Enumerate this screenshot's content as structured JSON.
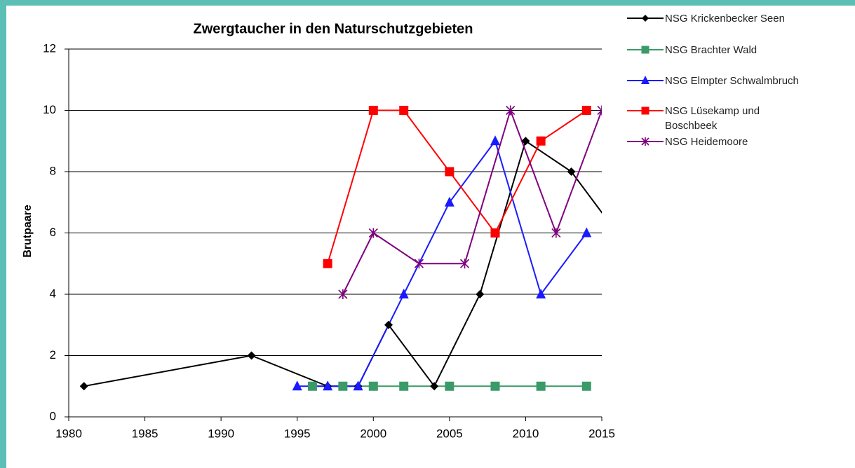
{
  "chart_data": {
    "type": "line",
    "title": "Zwergtaucher in den Naturschutzgebieten",
    "y_label": "Brutpaare",
    "xlim": [
      1980,
      2015
    ],
    "xticks": [
      1980,
      1985,
      1990,
      1995,
      2000,
      2005,
      2010,
      2015
    ],
    "ylim": [
      0,
      12
    ],
    "yticks": [
      0,
      2,
      4,
      6,
      8,
      10,
      12
    ],
    "grid": true,
    "legend": "right",
    "series": [
      {
        "name": "NSG Krickenbecker Seen",
        "color": "#000000",
        "marker": "diamond",
        "x": [
          1981,
          1992,
          1997,
          1999,
          2001,
          2004,
          2007,
          2010,
          2013,
          2016
        ],
        "values": [
          1,
          2,
          1,
          1,
          3,
          1,
          4,
          9,
          8,
          6
        ]
      },
      {
        "name": "NSG Brachter Wald",
        "color": "#3a9a68",
        "marker": "square",
        "x": [
          1996,
          1998,
          2000,
          2002,
          2005,
          2008,
          2011,
          2014
        ],
        "values": [
          1,
          1,
          1,
          1,
          1,
          1,
          1,
          1
        ]
      },
      {
        "name": "NSG Elmpter Schwalmbruch",
        "color": "#1a1aff",
        "marker": "triangle",
        "x": [
          1995,
          1997,
          1999,
          2002,
          2005,
          2008,
          2011,
          2014
        ],
        "values": [
          1,
          1,
          1,
          4,
          7,
          9,
          4,
          6
        ]
      },
      {
        "name": "NSG Lüsekamp und\nBoschbeek",
        "color": "#ff0000",
        "marker": "square",
        "x": [
          1997,
          2000,
          2002,
          2005,
          2008,
          2011,
          2014
        ],
        "values": [
          5,
          10,
          10,
          8,
          6,
          9,
          10
        ]
      },
      {
        "name": "NSG Heidemoore",
        "color": "#800080",
        "marker": "star",
        "x": [
          1998,
          2000,
          2003,
          2006,
          2009,
          2012,
          2015
        ],
        "values": [
          4,
          6,
          5,
          5,
          10,
          6,
          10
        ]
      }
    ]
  }
}
